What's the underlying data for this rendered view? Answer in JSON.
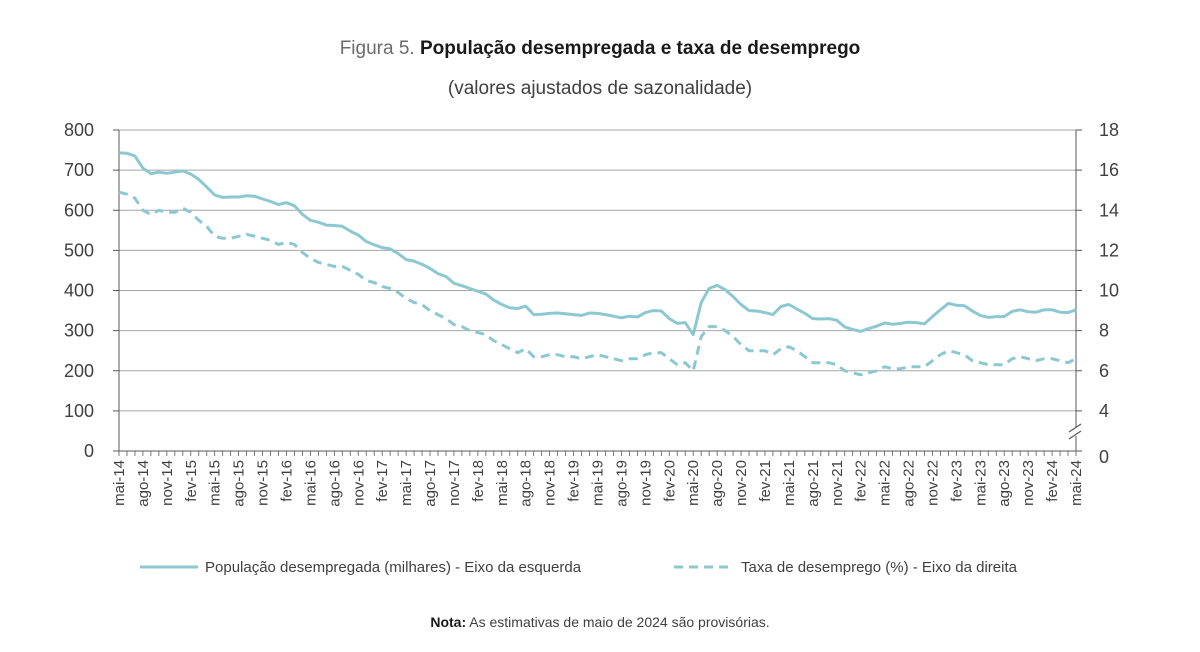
{
  "header": {
    "figure_label": "Figura 5.",
    "title": "População desempregada e taxa de desemprego",
    "subtitle": "(valores ajustados de sazonalidade)"
  },
  "note": {
    "label": "Nota:",
    "text": "As estimativas de maio de 2024 são provisórias."
  },
  "chart_data": {
    "type": "line",
    "title": "População desempregada e taxa de desemprego",
    "subtitle": "(valores ajustados de sazonalidade)",
    "colors": {
      "series": "#8cc8d0",
      "grid": "#a6a6a6",
      "axis": "#595959"
    },
    "x": [
      "mai-14",
      "jun-14",
      "jul-14",
      "ago-14",
      "set-14",
      "out-14",
      "nov-14",
      "dez-14",
      "jan-15",
      "fev-15",
      "mar-15",
      "abr-15",
      "mai-15",
      "jun-15",
      "jul-15",
      "ago-15",
      "set-15",
      "out-15",
      "nov-15",
      "dez-15",
      "jan-16",
      "fev-16",
      "mar-16",
      "abr-16",
      "mai-16",
      "jun-16",
      "jul-16",
      "ago-16",
      "set-16",
      "out-16",
      "nov-16",
      "dez-16",
      "jan-17",
      "fev-17",
      "mar-17",
      "abr-17",
      "mai-17",
      "jun-17",
      "jul-17",
      "ago-17",
      "set-17",
      "out-17",
      "nov-17",
      "dez-17",
      "jan-18",
      "fev-18",
      "mar-18",
      "abr-18",
      "mai-18",
      "jun-18",
      "jul-18",
      "ago-18",
      "set-18",
      "out-18",
      "nov-18",
      "dez-18",
      "jan-19",
      "fev-19",
      "mar-19",
      "abr-19",
      "mai-19",
      "jun-19",
      "jul-19",
      "ago-19",
      "set-19",
      "out-19",
      "nov-19",
      "dez-19",
      "jan-20",
      "fev-20",
      "mar-20",
      "abr-20",
      "mai-20",
      "jun-20",
      "jul-20",
      "ago-20",
      "set-20",
      "out-20",
      "nov-20",
      "dez-20",
      "jan-21",
      "fev-21",
      "mar-21",
      "abr-21",
      "mai-21",
      "jun-21",
      "jul-21",
      "ago-21",
      "set-21",
      "out-21",
      "nov-21",
      "dez-21",
      "jan-22",
      "fev-22",
      "mar-22",
      "abr-22",
      "mai-22",
      "jun-22",
      "jul-22",
      "ago-22",
      "set-22",
      "out-22",
      "nov-22",
      "dez-22",
      "jan-23",
      "fev-23",
      "mar-23",
      "abr-23",
      "mai-23",
      "jun-23",
      "jul-23",
      "ago-23",
      "set-23",
      "out-23",
      "nov-23",
      "dez-23",
      "jan-24",
      "fev-24",
      "mar-24",
      "abr-24",
      "mai-24"
    ],
    "xtick_labels": [
      "mai-14",
      "ago-14",
      "nov-14",
      "fev-15",
      "mai-15",
      "ago-15",
      "nov-15",
      "fev-16",
      "mai-16",
      "ago-16",
      "nov-16",
      "fev-17",
      "mai-17",
      "ago-17",
      "nov-17",
      "fev-18",
      "mai-18",
      "ago-18",
      "nov-18",
      "fev-19",
      "mai-19",
      "ago-19",
      "nov-19",
      "fev-20",
      "mai-20",
      "ago-20",
      "nov-20",
      "fev-21",
      "mai-21",
      "ago-21",
      "nov-21",
      "fev-22",
      "mai-22",
      "ago-22",
      "nov-22",
      "fev-23",
      "mai-23",
      "ago-23",
      "nov-23",
      "fev-24",
      "mai-24"
    ],
    "y_left": {
      "ylim": [
        0,
        800
      ],
      "ticks": [
        "0",
        "100",
        "200",
        "300",
        "400",
        "500",
        "600",
        "700",
        "800"
      ]
    },
    "y_right": {
      "ylim": [
        0,
        18
      ],
      "axis_break": true,
      "ticks": [
        "0",
        "4",
        "6",
        "8",
        "10",
        "12",
        "14",
        "16",
        "18"
      ]
    },
    "series": [
      {
        "name": "População desempregada (milhares) - Eixo da esquerda",
        "axis": "left",
        "style": "solid",
        "values": [
          743,
          742,
          735,
          705,
          691,
          695,
          692,
          695,
          698,
          690,
          677,
          658,
          638,
          632,
          633,
          633,
          636,
          635,
          628,
          622,
          614,
          619,
          611,
          590,
          575,
          570,
          563,
          562,
          560,
          548,
          538,
          522,
          514,
          507,
          504,
          492,
          477,
          473,
          465,
          455,
          442,
          435,
          418,
          412,
          405,
          398,
          391,
          376,
          365,
          357,
          355,
          361,
          340,
          341,
          343,
          344,
          342,
          340,
          338,
          344,
          343,
          340,
          336,
          332,
          336,
          334,
          345,
          350,
          349,
          330,
          318,
          320,
          290,
          370,
          405,
          413,
          402,
          385,
          365,
          350,
          349,
          345,
          340,
          360,
          365,
          354,
          343,
          330,
          329,
          330,
          326,
          309,
          303,
          298,
          305,
          311,
          319,
          316,
          318,
          321,
          320,
          317,
          335,
          352,
          368,
          363,
          362,
          349,
          338,
          333,
          335,
          335,
          348,
          352,
          347,
          346,
          352,
          352,
          346,
          345,
          352
        ]
      },
      {
        "name": "Taxa de desemprego (%) - Eixo da direita",
        "axis": "right",
        "style": "dashed",
        "values": [
          14.9,
          14.8,
          14.6,
          14.0,
          13.8,
          14.0,
          13.9,
          13.9,
          14.1,
          13.9,
          13.5,
          13.2,
          12.7,
          12.6,
          12.6,
          12.7,
          12.8,
          12.7,
          12.6,
          12.5,
          12.3,
          12.4,
          12.3,
          11.9,
          11.6,
          11.4,
          11.3,
          11.2,
          11.2,
          11.0,
          10.8,
          10.5,
          10.4,
          10.2,
          10.1,
          9.9,
          9.6,
          9.4,
          9.3,
          9.0,
          8.8,
          8.6,
          8.3,
          8.2,
          8.0,
          7.9,
          7.8,
          7.5,
          7.3,
          7.1,
          6.9,
          7.1,
          6.7,
          6.7,
          6.8,
          6.8,
          6.7,
          6.7,
          6.6,
          6.7,
          6.8,
          6.7,
          6.6,
          6.5,
          6.6,
          6.6,
          6.8,
          6.9,
          6.9,
          6.6,
          6.3,
          6.4,
          6.0,
          7.7,
          8.2,
          8.2,
          8.0,
          7.7,
          7.3,
          7.0,
          7.0,
          7.0,
          6.8,
          7.1,
          7.2,
          7.0,
          6.7,
          6.4,
          6.4,
          6.4,
          6.3,
          6.0,
          5.9,
          5.8,
          5.9,
          6.0,
          6.2,
          6.1,
          6.1,
          6.2,
          6.2,
          6.2,
          6.5,
          6.8,
          7.0,
          6.9,
          6.8,
          6.5,
          6.4,
          6.3,
          6.3,
          6.3,
          6.6,
          6.7,
          6.6,
          6.5,
          6.6,
          6.6,
          6.5,
          6.4,
          6.6
        ]
      }
    ],
    "legend": {
      "position": "bottom",
      "entries": [
        "População desempregada (milhares) - Eixo da esquerda",
        "Taxa de desemprego (%) - Eixo da direita"
      ]
    },
    "grid": true
  }
}
